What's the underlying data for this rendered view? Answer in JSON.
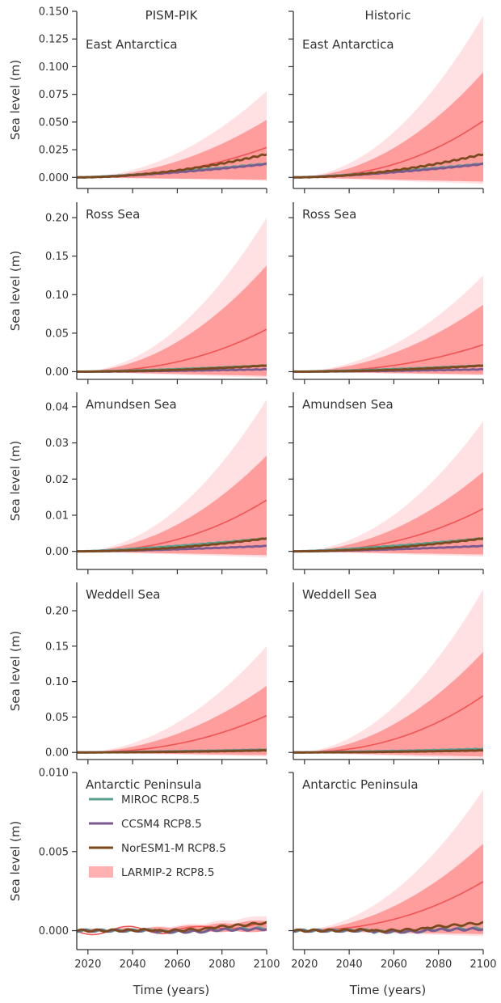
{
  "figure": {
    "column_titles": [
      "PISM-PIK",
      "Historic"
    ],
    "x_axis_label": "Time (years)",
    "y_axis_label": "Sea level (m)"
  },
  "legend": {
    "placement": "inside Antarctic Peninsula PISM-PIK panel, upper-left",
    "entries": [
      {
        "label": "MIROC RCP8.5",
        "color": "#5b9f8f",
        "kind": "line"
      },
      {
        "label": "CCSM4 RCP8.5",
        "color": "#7b5a8f",
        "kind": "line"
      },
      {
        "label": "NorESM1-M RCP8.5",
        "color": "#7a4a1e",
        "kind": "line"
      },
      {
        "label": "LARMIP-2 RCP8.5",
        "color": "#ffb0b0",
        "kind": "patch"
      }
    ]
  },
  "colors": {
    "miroc": "#5b9f8f",
    "ccsm4": "#7b5a8f",
    "noresm": "#7a4a1e",
    "band_outer": "#ffe1e3",
    "band_inner": "#ff9c9c",
    "median": "#f05454"
  },
  "chart_data": [
    {
      "type": "line",
      "row": 0,
      "col": 0,
      "region": "East Antarctica",
      "column_title": "PISM-PIK",
      "xlim": [
        2015,
        2100
      ],
      "ylim": [
        -0.01,
        0.15
      ],
      "x_ticks": [
        "2020",
        "2040",
        "2060",
        "2080",
        "2100"
      ],
      "y_ticks": [
        "0.000",
        "0.025",
        "0.050",
        "0.075",
        "0.100",
        "0.125",
        "0.150"
      ],
      "y_tick_values": [
        0.0,
        0.025,
        0.05,
        0.075,
        0.1,
        0.125,
        0.15
      ],
      "larmip": {
        "outer_end": 0.078,
        "inner_end": 0.052,
        "median_end": 0.027
      },
      "models": {
        "miroc": 0.0125,
        "ccsm4": 0.012,
        "noresm": 0.021
      }
    },
    {
      "type": "line",
      "row": 0,
      "col": 1,
      "region": "East Antarctica",
      "column_title": "Historic",
      "xlim": [
        2015,
        2100
      ],
      "ylim": [
        -0.01,
        0.15
      ],
      "x_ticks": [
        "2020",
        "2040",
        "2060",
        "2080",
        "2100"
      ],
      "y_ticks": [
        "0.000",
        "0.025",
        "0.050",
        "0.075",
        "0.100",
        "0.125",
        "0.150"
      ],
      "y_tick_values": [
        0.0,
        0.025,
        0.05,
        0.075,
        0.1,
        0.125,
        0.15
      ],
      "larmip": {
        "outer_end": 0.146,
        "inner_end": 0.095,
        "median_end": 0.051
      },
      "models": {
        "miroc": 0.0125,
        "ccsm4": 0.012,
        "noresm": 0.021
      }
    },
    {
      "type": "line",
      "row": 1,
      "col": 0,
      "region": "Ross Sea",
      "xlim": [
        2015,
        2100
      ],
      "ylim": [
        -0.01,
        0.22
      ],
      "x_ticks": [
        "2020",
        "2040",
        "2060",
        "2080",
        "2100"
      ],
      "y_ticks": [
        "0.00",
        "0.05",
        "0.10",
        "0.15",
        "0.20"
      ],
      "y_tick_values": [
        0.0,
        0.05,
        0.1,
        0.15,
        0.2
      ],
      "larmip": {
        "outer_end": 0.2,
        "inner_end": 0.138,
        "median_end": 0.055
      },
      "models": {
        "miroc": 0.008,
        "ccsm4": 0.003,
        "noresm": 0.008
      }
    },
    {
      "type": "line",
      "row": 1,
      "col": 1,
      "region": "Ross Sea",
      "xlim": [
        2015,
        2100
      ],
      "ylim": [
        -0.01,
        0.22
      ],
      "x_ticks": [
        "2020",
        "2040",
        "2060",
        "2080",
        "2100"
      ],
      "y_ticks": [
        "0.00",
        "0.05",
        "0.10",
        "0.15",
        "0.20"
      ],
      "y_tick_values": [
        0.0,
        0.05,
        0.1,
        0.15,
        0.2
      ],
      "larmip": {
        "outer_end": 0.125,
        "inner_end": 0.087,
        "median_end": 0.035
      },
      "models": {
        "miroc": 0.008,
        "ccsm4": 0.003,
        "noresm": 0.008
      }
    },
    {
      "type": "line",
      "row": 2,
      "col": 0,
      "region": "Amundsen Sea",
      "xlim": [
        2015,
        2100
      ],
      "ylim": [
        -0.005,
        0.044
      ],
      "x_ticks": [
        "2020",
        "2040",
        "2060",
        "2080",
        "2100"
      ],
      "y_ticks": [
        "0.00",
        "0.01",
        "0.02",
        "0.03",
        "0.04"
      ],
      "y_tick_values": [
        0.0,
        0.01,
        0.02,
        0.03,
        0.04
      ],
      "larmip": {
        "outer_end": 0.042,
        "inner_end": 0.0265,
        "median_end": 0.0142
      },
      "models": {
        "miroc": 0.0036,
        "ccsm4": 0.0015,
        "noresm": 0.0036
      }
    },
    {
      "type": "line",
      "row": 2,
      "col": 1,
      "region": "Amundsen Sea",
      "xlim": [
        2015,
        2100
      ],
      "ylim": [
        -0.005,
        0.044
      ],
      "x_ticks": [
        "2020",
        "2040",
        "2060",
        "2080",
        "2100"
      ],
      "y_ticks": [
        "0.00",
        "0.01",
        "0.02",
        "0.03",
        "0.04"
      ],
      "y_tick_values": [
        0.0,
        0.01,
        0.02,
        0.03,
        0.04
      ],
      "larmip": {
        "outer_end": 0.036,
        "inner_end": 0.022,
        "median_end": 0.0118
      },
      "models": {
        "miroc": 0.0036,
        "ccsm4": 0.0015,
        "noresm": 0.0036
      }
    },
    {
      "type": "line",
      "row": 3,
      "col": 0,
      "region": "Weddell Sea",
      "xlim": [
        2015,
        2100
      ],
      "ylim": [
        -0.01,
        0.24
      ],
      "x_ticks": [
        "2020",
        "2040",
        "2060",
        "2080",
        "2100"
      ],
      "y_ticks": [
        "0.00",
        "0.05",
        "0.10",
        "0.15",
        "0.20"
      ],
      "y_tick_values": [
        0.0,
        0.05,
        0.1,
        0.15,
        0.2
      ],
      "larmip": {
        "outer_end": 0.15,
        "inner_end": 0.094,
        "median_end": 0.052
      },
      "models": {
        "miroc": 0.004,
        "ccsm4": 0.003,
        "noresm": 0.003
      }
    },
    {
      "type": "line",
      "row": 3,
      "col": 1,
      "region": "Weddell Sea",
      "xlim": [
        2015,
        2100
      ],
      "ylim": [
        -0.01,
        0.24
      ],
      "x_ticks": [
        "2020",
        "2040",
        "2060",
        "2080",
        "2100"
      ],
      "y_ticks": [
        "0.00",
        "0.05",
        "0.10",
        "0.15",
        "0.20"
      ],
      "y_tick_values": [
        0.0,
        0.05,
        0.1,
        0.15,
        0.2
      ],
      "larmip": {
        "outer_end": 0.23,
        "inner_end": 0.142,
        "median_end": 0.08
      },
      "models": {
        "miroc": 0.005,
        "ccsm4": 0.003,
        "noresm": 0.003
      }
    },
    {
      "type": "line",
      "row": 4,
      "col": 0,
      "region": "Antarctic Peninsula",
      "xlim": [
        2015,
        2100
      ],
      "ylim": [
        -0.0012,
        0.01
      ],
      "x_ticks": [
        "2020",
        "2040",
        "2060",
        "2080",
        "2100"
      ],
      "y_ticks": [
        "0.000",
        "0.005",
        "0.010"
      ],
      "y_tick_values": [
        0.0,
        0.005,
        0.01
      ],
      "larmip": {
        "outer_end": 0.0009,
        "inner_end": 0.0006,
        "median_end": 0.0004
      },
      "models": {
        "miroc": 0.00015,
        "ccsm4": 0.0001,
        "noresm": 0.0005
      }
    },
    {
      "type": "line",
      "row": 4,
      "col": 1,
      "region": "Antarctic Peninsula",
      "xlim": [
        2015,
        2100
      ],
      "ylim": [
        -0.0012,
        0.01
      ],
      "x_ticks": [
        "2020",
        "2040",
        "2060",
        "2080",
        "2100"
      ],
      "y_ticks": [
        "0.000",
        "0.005",
        "0.010"
      ],
      "y_tick_values": [
        0.0,
        0.005,
        0.01
      ],
      "larmip": {
        "outer_end": 0.0089,
        "inner_end": 0.0055,
        "median_end": 0.0031
      },
      "models": {
        "miroc": 0.00015,
        "ccsm4": 0.0001,
        "noresm": 0.0005
      }
    }
  ]
}
